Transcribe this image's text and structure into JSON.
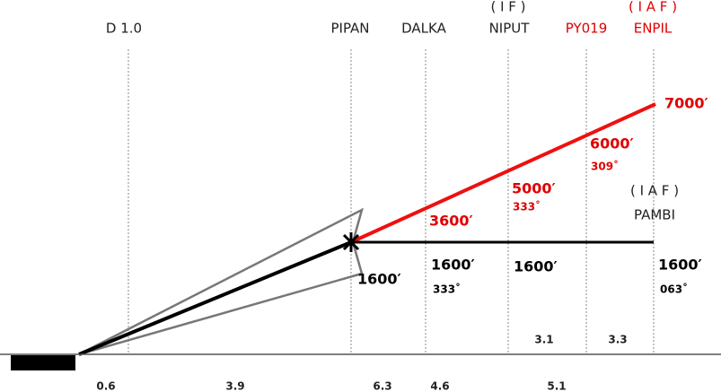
{
  "fixes": [
    {
      "name": "D 1.0"
    },
    {
      "name": "PIPAN"
    },
    {
      "name": "DALKA"
    },
    {
      "role": "( I F )",
      "name": "NIPUT"
    },
    {
      "name": "PY019"
    },
    {
      "role": "( I A F )",
      "name": "ENPIL"
    }
  ],
  "red_profile": {
    "altitudes": [
      "7000′",
      "6000′",
      "5000′",
      "3600′"
    ],
    "courses": [
      "309˚",
      "333˚"
    ],
    "distances": [
      "3.1",
      "3.3"
    ]
  },
  "black_profile": {
    "fix_role": "( I A F )",
    "fix_name": "PAMBI",
    "altitudes": [
      "1600′",
      "1600′",
      "1600′",
      "1600′"
    ],
    "courses": [
      "333˚",
      "063˚"
    ]
  },
  "segment_distances": [
    "0.6",
    "3.9",
    "6.3",
    "4.6",
    "5.1"
  ]
}
